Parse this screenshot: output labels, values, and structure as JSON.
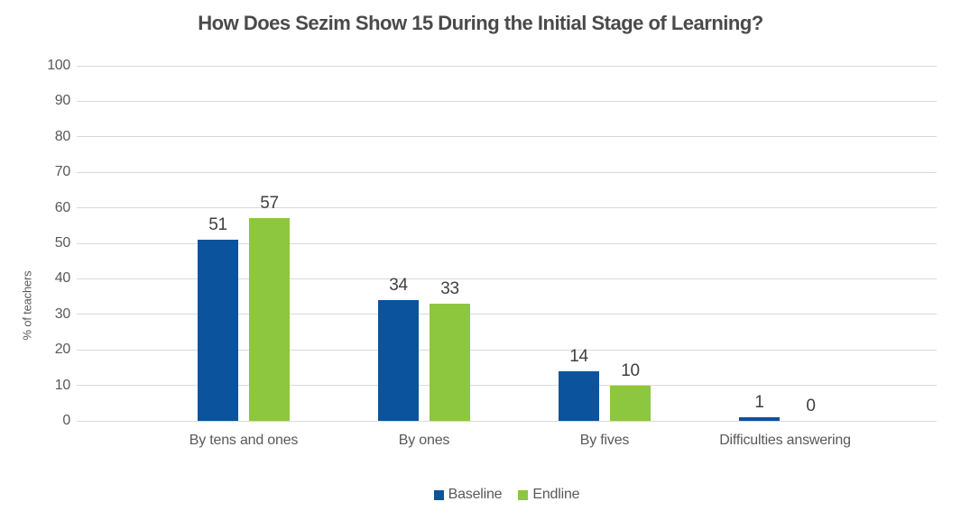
{
  "chart_data": {
    "type": "bar",
    "title": "How Does Sezim Show 15 During the Initial Stage of Learning?",
    "ylabel": "% of teachers",
    "xlabel": "",
    "ylim": [
      0,
      100
    ],
    "yticks": [
      0,
      10,
      20,
      30,
      40,
      50,
      60,
      70,
      80,
      90,
      100
    ],
    "grid": true,
    "legend_position": "bottom-center",
    "categories": [
      "By tens and ones",
      "By ones",
      "By fives",
      "Difficulties answering"
    ],
    "series": [
      {
        "name": "Baseline",
        "color": "#0b539c",
        "values": [
          51,
          34,
          14,
          1
        ]
      },
      {
        "name": "Endline",
        "color": "#8dc63f",
        "values": [
          57,
          33,
          10,
          0
        ]
      }
    ]
  },
  "colors": {
    "background": "#ffffff",
    "gridline": "#d9d9d9",
    "title_text": "#4a4a4a",
    "axis_text": "#595959",
    "value_label_text": "#404040"
  }
}
